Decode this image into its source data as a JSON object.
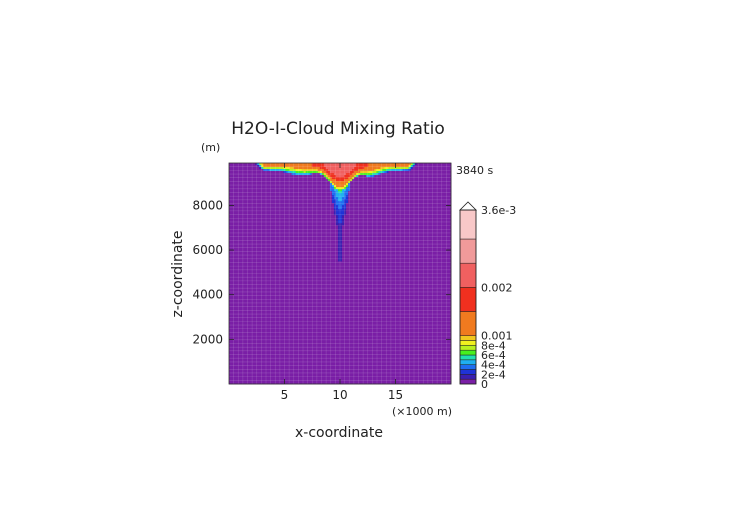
{
  "chart_data": {
    "type": "heatmap",
    "title": "H2O-I-Cloud Mixing Ratio",
    "xlabel": "x-coordinate",
    "ylabel": "z-coordinate",
    "y_unit": "(m)",
    "x_unit": "(×1000 m)",
    "time_label": "3840 s",
    "xlim": [
      0,
      20
    ],
    "ylim": [
      0,
      9900
    ],
    "xticks": [
      5,
      10,
      15
    ],
    "yticks": [
      2000,
      4000,
      6000,
      8000
    ],
    "grid": true,
    "colorbar": {
      "levels": [
        0,
        0.0001,
        0.0002,
        0.0003,
        0.0004,
        0.0005,
        0.0006,
        0.0007,
        0.0008,
        0.0009,
        0.001,
        0.0015,
        0.002,
        0.0025,
        0.003,
        0.0036
      ],
      "colors": [
        "#7a1fa6",
        "#3a1fb0",
        "#1f33d6",
        "#1f6ef0",
        "#1fb0f0",
        "#1fe0b0",
        "#46f01f",
        "#b8f01f",
        "#f0f01f",
        "#f0c81f",
        "#f07a1f",
        "#f0301f",
        "#f06060",
        "#f09a9a",
        "#f8c8c8"
      ],
      "tick_labels": [
        "0",
        "2e-4",
        "4e-4",
        "6e-4",
        "8e-4",
        "0.001",
        "0.002",
        "3.6e-3"
      ],
      "tick_values": [
        0,
        0.0002,
        0.0004,
        0.0006,
        0.0008,
        0.001,
        0.002,
        0.0036
      ]
    },
    "field_description_values": {
      "background": 0,
      "anvil_base_z": 9600,
      "anvil_x_range": [
        2.3,
        17.0
      ],
      "core_x": 10,
      "core_peak": 0.0025,
      "stem_bottom_z": 4700,
      "stem_value": 0.0002
    }
  }
}
